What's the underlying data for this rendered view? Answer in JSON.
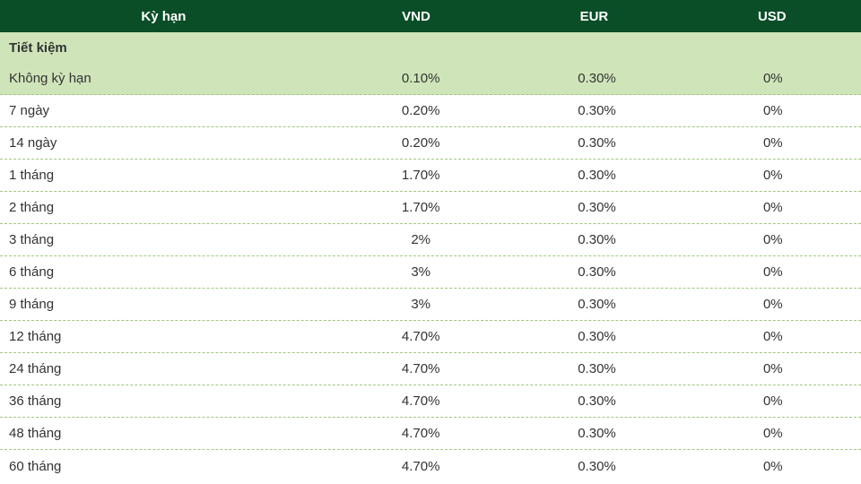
{
  "colors": {
    "header_bg": "#0a4e27",
    "header_text": "#ffffff",
    "section_bg": "#cfe5b9",
    "highlight_bg": "#cfe5b9",
    "row_border": "#9fc77f",
    "body_text": "#333333"
  },
  "columns": [
    "Kỳ hạn",
    "VND",
    "EUR",
    "USD"
  ],
  "section_label": "Tiết kiệm",
  "rows": [
    {
      "term": "Không kỳ hạn",
      "vnd": "0.10%",
      "eur": "0.30%",
      "usd": "0%",
      "highlight": true
    },
    {
      "term": "7 ngày",
      "vnd": "0.20%",
      "eur": "0.30%",
      "usd": "0%",
      "highlight": false
    },
    {
      "term": "14 ngày",
      "vnd": "0.20%",
      "eur": "0.30%",
      "usd": "0%",
      "highlight": false
    },
    {
      "term": "1 tháng",
      "vnd": "1.70%",
      "eur": "0.30%",
      "usd": "0%",
      "highlight": false
    },
    {
      "term": "2 tháng",
      "vnd": "1.70%",
      "eur": "0.30%",
      "usd": "0%",
      "highlight": false
    },
    {
      "term": "3 tháng",
      "vnd": "2%",
      "eur": "0.30%",
      "usd": "0%",
      "highlight": false
    },
    {
      "term": "6 tháng",
      "vnd": "3%",
      "eur": "0.30%",
      "usd": "0%",
      "highlight": false
    },
    {
      "term": "9 tháng",
      "vnd": "3%",
      "eur": "0.30%",
      "usd": "0%",
      "highlight": false
    },
    {
      "term": "12 tháng",
      "vnd": "4.70%",
      "eur": "0.30%",
      "usd": "0%",
      "highlight": false
    },
    {
      "term": "24 tháng",
      "vnd": "4.70%",
      "eur": "0.30%",
      "usd": "0%",
      "highlight": false
    },
    {
      "term": "36 tháng",
      "vnd": "4.70%",
      "eur": "0.30%",
      "usd": "0%",
      "highlight": false
    },
    {
      "term": "48 tháng",
      "vnd": "4.70%",
      "eur": "0.30%",
      "usd": "0%",
      "highlight": false
    },
    {
      "term": "60 tháng",
      "vnd": "4.70%",
      "eur": "0.30%",
      "usd": "0%",
      "highlight": false
    }
  ]
}
